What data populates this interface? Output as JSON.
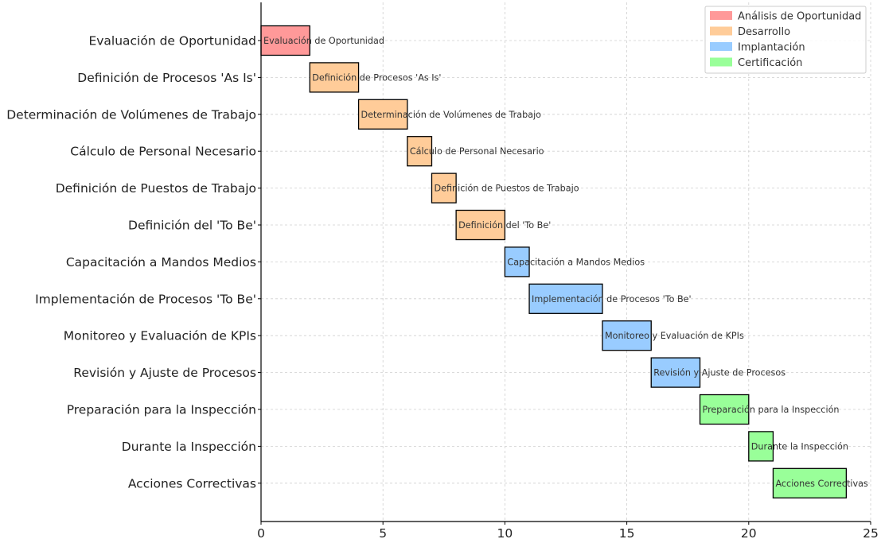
{
  "chart_data": {
    "type": "bar",
    "orientation": "horizontal-gantt",
    "title": "",
    "xlabel": "",
    "ylabel": "",
    "xlim": [
      0,
      25
    ],
    "xticks": [
      0,
      5,
      10,
      15,
      20,
      25
    ],
    "grid": true,
    "legend_position": "top-right",
    "phases": [
      {
        "name": "Análisis de Oportunidad",
        "color": "#ff9999"
      },
      {
        "name": "Desarrollo",
        "color": "#ffcc99"
      },
      {
        "name": "Implantación",
        "color": "#99ccff"
      },
      {
        "name": "Certificación",
        "color": "#99ff99"
      }
    ],
    "tasks": [
      {
        "name": "Evaluación de Oportunidad",
        "start": 0,
        "duration": 2,
        "phase": 0
      },
      {
        "name": "Definición de Procesos 'As Is'",
        "start": 2,
        "duration": 2,
        "phase": 1
      },
      {
        "name": "Determinación de Volúmenes de Trabajo",
        "start": 4,
        "duration": 2,
        "phase": 1
      },
      {
        "name": "Cálculo de Personal Necesario",
        "start": 6,
        "duration": 1,
        "phase": 1
      },
      {
        "name": "Definición de Puestos de Trabajo",
        "start": 7,
        "duration": 1,
        "phase": 1
      },
      {
        "name": "Definición del 'To Be'",
        "start": 8,
        "duration": 2,
        "phase": 1
      },
      {
        "name": "Capacitación a Mandos Medios",
        "start": 10,
        "duration": 1,
        "phase": 2
      },
      {
        "name": "Implementación de Procesos 'To Be'",
        "start": 11,
        "duration": 3,
        "phase": 2
      },
      {
        "name": "Monitoreo y Evaluación de KPIs",
        "start": 14,
        "duration": 2,
        "phase": 2
      },
      {
        "name": "Revisión y Ajuste de Procesos",
        "start": 16,
        "duration": 2,
        "phase": 2
      },
      {
        "name": "Preparación para la Inspección",
        "start": 18,
        "duration": 2,
        "phase": 3
      },
      {
        "name": "Durante la Inspección",
        "start": 20,
        "duration": 1,
        "phase": 3
      },
      {
        "name": "Acciones Correctivas",
        "start": 21,
        "duration": 3,
        "phase": 3
      }
    ]
  }
}
